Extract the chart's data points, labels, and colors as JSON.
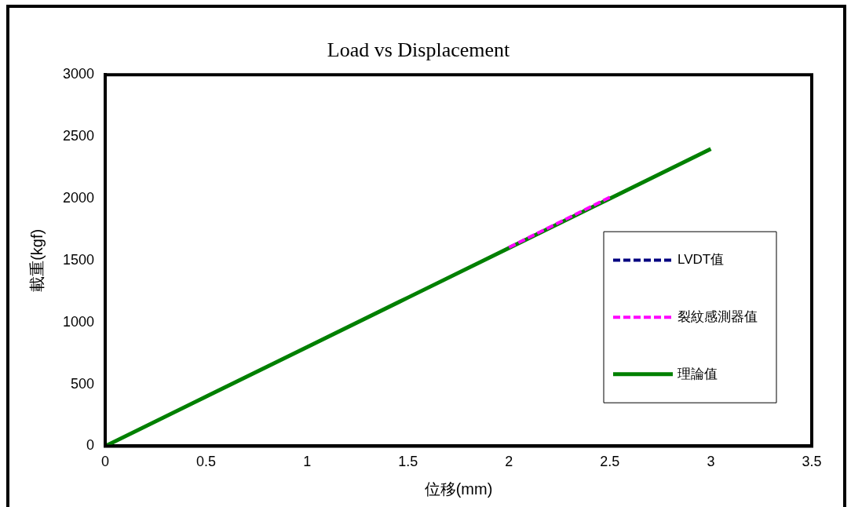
{
  "chart_data": {
    "type": "line",
    "title": "Load vs Displacement",
    "xlabel": "位移(mm)",
    "ylabel": "載重(kgf)",
    "xlim": [
      0,
      3.5
    ],
    "xticks": [
      0,
      0.5,
      1,
      1.5,
      2,
      2.5,
      3,
      3.5
    ],
    "ylim": [
      0,
      3000
    ],
    "yticks": [
      0,
      500,
      1000,
      1500,
      2000,
      2500,
      3000
    ],
    "grid": false,
    "legend": "right",
    "marker": "none",
    "series": [
      {
        "name": "LVDT值",
        "color": "#000080",
        "line_style": "dashed"
      },
      {
        "name": "裂紋感測器值",
        "color": "#ff00ff",
        "line_style": "dashed",
        "x": [
          2,
          2.5
        ],
        "values": [
          1605,
          2010
        ]
      },
      {
        "name": "理論值",
        "color": "#008000",
        "line_style": "solid",
        "x": [
          0,
          0.5,
          1,
          1.5,
          2,
          2.5,
          3
        ],
        "values": [
          0,
          400,
          800,
          1200,
          1600,
          2000,
          2400
        ]
      }
    ]
  }
}
